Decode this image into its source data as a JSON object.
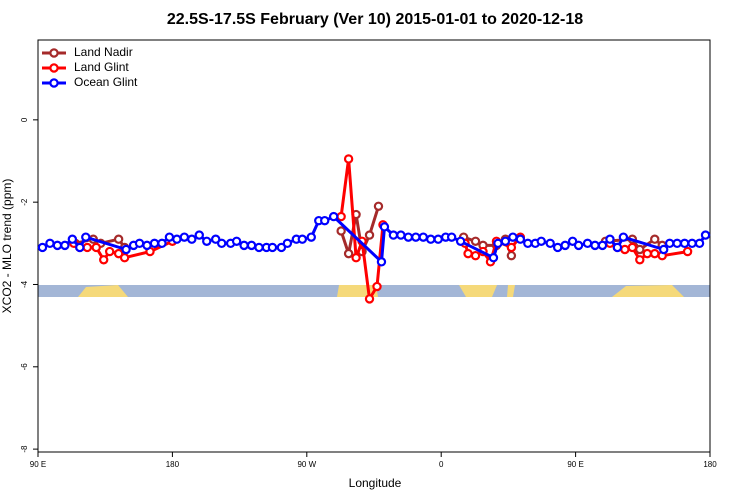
{
  "chart_data": {
    "type": "line",
    "title": "22.5S-17.5S February (Ver 10)   2015-01-01 to 2020-12-18",
    "xlabel": "Longitude",
    "ylabel": "XCO2 - MLO trend (ppm)",
    "xlim": [
      -270,
      180
    ],
    "ylim": [
      -8.07,
      1.94
    ],
    "xticks": [
      {
        "value": -270,
        "label": "90 E"
      },
      {
        "value": -180,
        "label": "180"
      },
      {
        "value": -90,
        "label": "90 W"
      },
      0,
      {
        "value": 90,
        "label": "90 E"
      },
      180
    ],
    "yticks": [
      0,
      -2,
      -4,
      -6,
      -8
    ],
    "legend": "top-left",
    "series": [
      {
        "name": "Land Nadir",
        "color": "#a52a2a",
        "x": [
          -245,
          -233,
          -228,
          -216,
          -212,
          null,
          -67,
          -62,
          -57,
          -53,
          -48,
          -42,
          null,
          15,
          23,
          28,
          37,
          43,
          47,
          null,
          110,
          128,
          133,
          143,
          148
        ],
        "values": [
          -3.0,
          -2.9,
          -3.0,
          -2.9,
          -3.1,
          null,
          -2.7,
          -3.25,
          -2.3,
          -3.2,
          -2.8,
          -2.1,
          null,
          -2.85,
          -2.95,
          -3.05,
          -3.05,
          -2.9,
          -3.3,
          null,
          -2.95,
          -2.9,
          -3.15,
          -2.9,
          -3.05
        ]
      },
      {
        "name": "Land Glint",
        "color": "#ff0000",
        "x": [
          -246,
          -242,
          -237,
          -231,
          -226,
          -222,
          -216,
          -212,
          -195,
          -180,
          null,
          -67,
          -62,
          -57,
          -53,
          -48,
          -43,
          -39,
          null,
          16,
          18,
          23,
          28,
          33,
          37,
          47,
          53,
          null,
          113,
          118,
          123,
          128,
          133,
          138,
          143,
          148,
          165
        ],
        "values": [
          -3.0,
          -3.1,
          -3.1,
          -3.1,
          -3.4,
          -3.2,
          -3.25,
          -3.35,
          -3.2,
          -2.95,
          null,
          -2.35,
          -0.95,
          -3.35,
          -2.95,
          -4.35,
          -4.05,
          -2.55,
          null,
          -3.0,
          -3.25,
          -3.3,
          -3.2,
          -3.45,
          -2.95,
          -3.1,
          -2.85,
          null,
          -3.0,
          -3.1,
          -3.15,
          -3.1,
          -3.4,
          -3.25,
          -3.25,
          -3.3,
          -3.2
        ]
      },
      {
        "name": "Ocean Glint",
        "color": "#0000ff",
        "x": [
          -267,
          -262,
          -257,
          -252,
          -247,
          -242,
          -238,
          -211,
          -206,
          -202,
          -197,
          -192,
          -187,
          -182,
          -177,
          -172,
          -167,
          -162,
          -157,
          -151,
          -147,
          -141,
          -137,
          -132,
          -127,
          -122,
          -117,
          -113,
          -107,
          -103,
          -97,
          -93,
          -87,
          -82,
          -78,
          -72,
          -40,
          -38,
          -32,
          -27,
          -22,
          -17,
          -12,
          -7,
          -2,
          3,
          7,
          13,
          35,
          38,
          43,
          48,
          53,
          58,
          63,
          67,
          73,
          78,
          83,
          88,
          92,
          98,
          103,
          108,
          113,
          118,
          122,
          149,
          153,
          158,
          163,
          168,
          173,
          177
        ],
        "values": [
          -3.1,
          -3.0,
          -3.05,
          -3.05,
          -2.9,
          -3.1,
          -2.85,
          -3.15,
          -3.05,
          -3.0,
          -3.05,
          -3.0,
          -3.0,
          -2.85,
          -2.9,
          -2.85,
          -2.9,
          -2.8,
          -2.95,
          -2.9,
          -3.0,
          -3.0,
          -2.95,
          -3.05,
          -3.05,
          -3.1,
          -3.1,
          -3.1,
          -3.1,
          -3.0,
          -2.9,
          -2.9,
          -2.85,
          -2.45,
          -2.45,
          -2.35,
          -3.45,
          -2.6,
          -2.8,
          -2.8,
          -2.85,
          -2.85,
          -2.85,
          -2.9,
          -2.9,
          -2.85,
          -2.85,
          -2.95,
          -3.35,
          -3.0,
          -2.95,
          -2.85,
          -2.9,
          -3.0,
          -3.0,
          -2.95,
          -3.0,
          -3.1,
          -3.05,
          -2.95,
          -3.05,
          -3.0,
          -3.05,
          -3.05,
          -2.9,
          -3.1,
          -2.85,
          -3.15,
          -3.0,
          -3.0,
          -3.0,
          -3.0,
          -3.0,
          -2.8
        ]
      }
    ]
  }
}
